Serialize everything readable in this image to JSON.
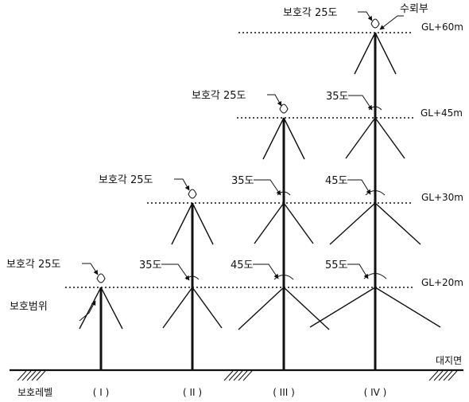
{
  "diagram": {
    "level_labels": {
      "gl60": "GL+60m",
      "gl45": "GL+45m",
      "gl30": "GL+30m",
      "gl20": "GL+20m"
    },
    "ground_label": "대지면",
    "air_terminal_label": "수뢰부",
    "protection_range_label": "보호범위",
    "protection_level_label": "보호레벨",
    "columns": [
      {
        "roman": "( I )",
        "angle_top": "보호각 25도"
      },
      {
        "roman": "( II )",
        "angle_top": "보호각 25도",
        "angle_20m": "35도"
      },
      {
        "roman": "( III )",
        "angle_top": "보호각 25도",
        "angle_30m": "35도",
        "angle_20m": "45도"
      },
      {
        "roman": "( IV )",
        "angle_top": "보호각 25도",
        "angle_45m": "35도",
        "angle_30m": "45도",
        "angle_20m": "55도"
      }
    ]
  }
}
